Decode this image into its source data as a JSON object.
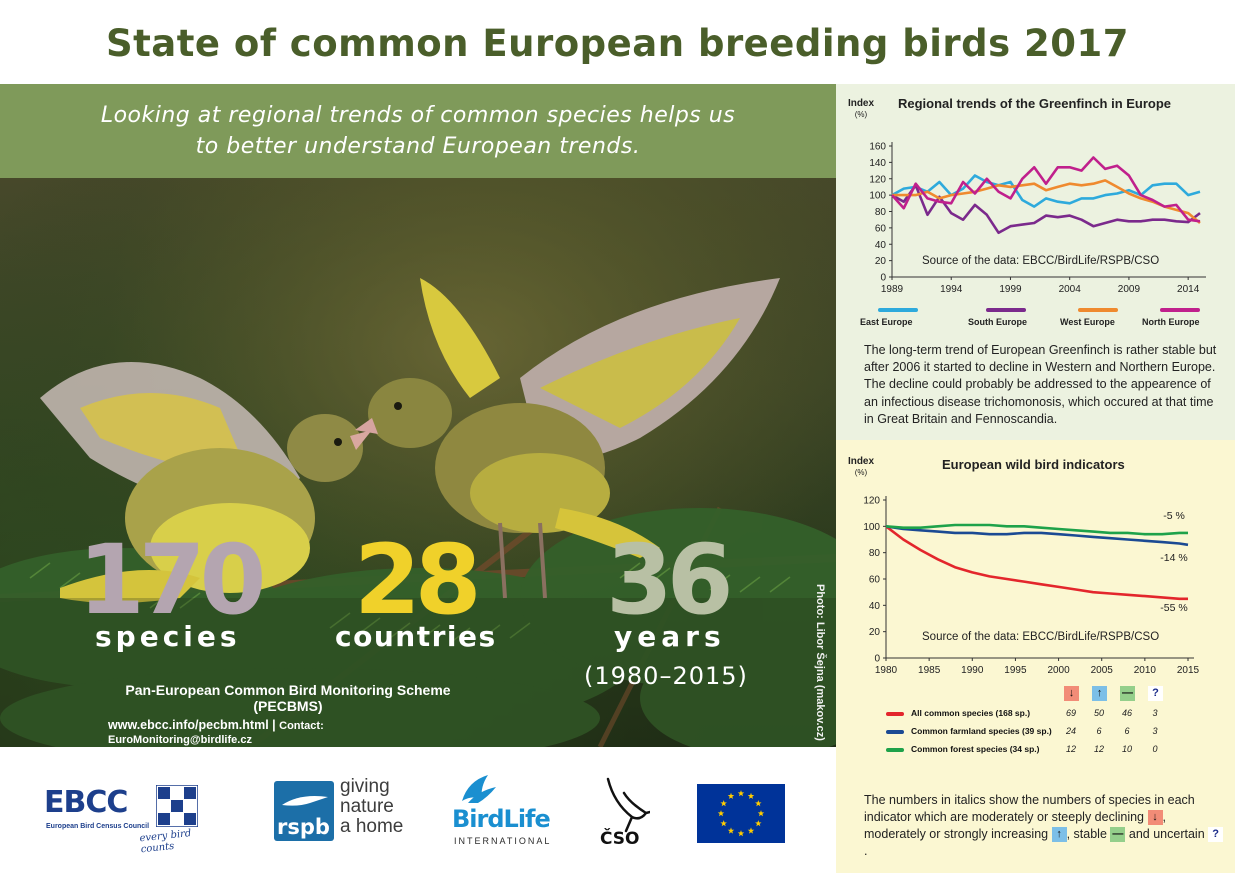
{
  "title": "State of common European breeding birds 2017",
  "tagline": {
    "line1": "Looking at regional trends of common species helps us",
    "line2": "to better understand European trends."
  },
  "stats": [
    {
      "number": "170",
      "word": "species",
      "color": "#b4a5b0"
    },
    {
      "number": "28",
      "word": "countries",
      "color": "#f0d12a"
    },
    {
      "number": "36",
      "word": "years",
      "color": "#b8c0a4",
      "range": "(1980–2015)"
    }
  ],
  "pecbms": {
    "line1": "Pan-European Common Bird Monitoring Scheme (PECBMS)",
    "url": "www.ebcc.info/pecbm.html",
    "sep": " | ",
    "contact": "Contact: EuroMonitoring@birdlife.cz"
  },
  "photo_credit": "Photo: Libor Šejna (makov.cz)",
  "description": "The long-term trend of European Greenfinch is rather stable but after 2006 it started to decline in Western and Northern Europe. The decline could probably be addressed to the appearence of an infectious disease trichomonosis, which occured at that time in Great Britain and Fennoscandia.",
  "note": {
    "p1": "The numbers in italics show the numbers of species in each indicator which are moderately or steeply declining",
    "p2": ", moderately or strongly increasing",
    "p3": ", stable",
    "p4": "and uncertain",
    "p5": "."
  },
  "icons": {
    "down": "↓",
    "up": "↑",
    "stable": "—",
    "uncertain": "?"
  },
  "logos": {
    "ebcc": "EBCC",
    "ebcc_sub": "European Bird Census Council",
    "ebcc_tag": "every bird counts",
    "rspb": "rspb",
    "rspb_tag1": "giving",
    "rspb_tag2": "nature",
    "rspb_tag3": "a home",
    "birdlife": "BirdLife",
    "birdlife_sub": "INTERNATIONAL",
    "cso": "ČSO"
  },
  "chart_data": [
    {
      "type": "line",
      "title": "Regional trends of the Greenfinch in Europe",
      "ylabel": "Index",
      "ylabel_unit": "(%)",
      "source": "Source of the data: EBCC/BirdLife/RSPB/CSO",
      "xlim": [
        1989,
        2015
      ],
      "ylim": [
        0,
        160
      ],
      "xticks": [
        1989,
        1994,
        1999,
        2004,
        2009,
        2014
      ],
      "yticks": [
        0,
        20,
        40,
        60,
        80,
        100,
        120,
        140,
        160
      ],
      "grid": false,
      "legend": "bottom",
      "x": [
        1989,
        1990,
        1991,
        1992,
        1993,
        1994,
        1995,
        1996,
        1997,
        1998,
        1999,
        2000,
        2001,
        2002,
        2003,
        2004,
        2005,
        2006,
        2007,
        2008,
        2009,
        2010,
        2011,
        2012,
        2013,
        2014,
        2015
      ],
      "series": [
        {
          "name": "East Europe",
          "color": "#2eaadc",
          "values": [
            100,
            108,
            110,
            104,
            116,
            100,
            108,
            124,
            116,
            112,
            116,
            94,
            86,
            96,
            92,
            90,
            96,
            96,
            100,
            102,
            106,
            100,
            112,
            114,
            114,
            100,
            104
          ]
        },
        {
          "name": "South Europe",
          "color": "#7b2a8c",
          "values": [
            100,
            92,
            112,
            76,
            98,
            78,
            70,
            88,
            76,
            54,
            62,
            64,
            66,
            75,
            73,
            75,
            70,
            62,
            66,
            70,
            68,
            68,
            70,
            70,
            68,
            67,
            78
          ]
        },
        {
          "name": "West Europe",
          "color": "#ef8a2f",
          "values": [
            100,
            100,
            100,
            104,
            96,
            100,
            102,
            104,
            108,
            112,
            110,
            112,
            114,
            106,
            110,
            114,
            112,
            114,
            118,
            110,
            102,
            96,
            92,
            86,
            82,
            78,
            66
          ]
        },
        {
          "name": "North Europe",
          "color": "#c0208c",
          "values": [
            100,
            84,
            114,
            96,
            92,
            90,
            116,
            102,
            120,
            104,
            96,
            120,
            134,
            114,
            134,
            134,
            130,
            146,
            132,
            136,
            124,
            100,
            94,
            86,
            88,
            70,
            68
          ]
        }
      ]
    },
    {
      "type": "line",
      "title": "European wild bird indicators",
      "ylabel": "Index",
      "ylabel_unit": "(%)",
      "source": "Source of the data: EBCC/BirdLife/RSPB/CSO",
      "xlim": [
        1980,
        2015
      ],
      "ylim": [
        0,
        120
      ],
      "xticks": [
        1980,
        1985,
        1990,
        1995,
        2000,
        2005,
        2010,
        2015
      ],
      "yticks": [
        0,
        20,
        40,
        60,
        80,
        100,
        120
      ],
      "grid": false,
      "legend": "bottom",
      "x": [
        1980,
        1982,
        1984,
        1986,
        1988,
        1990,
        1992,
        1994,
        1996,
        1998,
        2000,
        2002,
        2004,
        2006,
        2008,
        2010,
        2012,
        2014,
        2015
      ],
      "series": [
        {
          "name": "All common species (168 sp.)",
          "label": "-55 %",
          "color": "#e3262c",
          "counts": [
            "69",
            "50",
            "46",
            "3"
          ],
          "values": [
            100,
            90,
            82,
            75,
            69,
            65,
            62,
            60,
            58,
            56,
            54,
            52,
            50,
            49,
            48,
            47,
            46,
            45,
            45
          ]
        },
        {
          "name": "Common farmland species (39 sp.)",
          "label": "-14 %",
          "color": "#1b4a93",
          "counts": [
            "24",
            "6",
            "6",
            "3"
          ],
          "values": [
            100,
            98,
            97,
            96,
            95,
            95,
            94,
            94,
            95,
            95,
            94,
            93,
            92,
            91,
            90,
            89,
            88,
            87,
            86
          ]
        },
        {
          "name": "Common forest species (34 sp.)",
          "label": "-5 %",
          "color": "#1ea24a",
          "counts": [
            "12",
            "12",
            "10",
            "0"
          ],
          "values": [
            100,
            99,
            99,
            100,
            101,
            101,
            101,
            100,
            100,
            99,
            98,
            97,
            96,
            95,
            95,
            94,
            94,
            95,
            95
          ]
        }
      ]
    }
  ]
}
